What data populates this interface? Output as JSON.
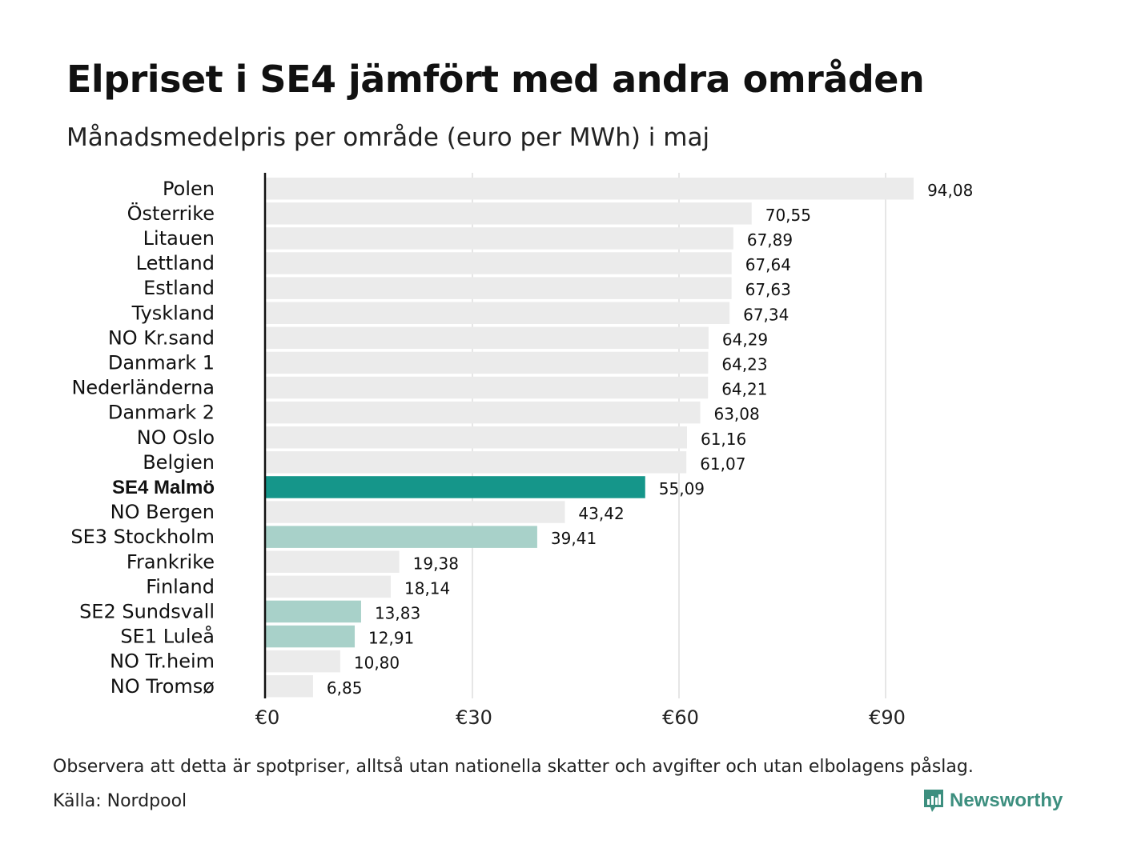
{
  "header": {
    "title": "Elpriset i SE4 jämfört med andra områden",
    "subtitle": "Månadsmedelpris per område (euro per MWh) i maj"
  },
  "footer": {
    "note": "Observera att detta är spotpriser, alltså utan nationella skatter och avgifter och utan elbolagens påslag.",
    "source": "Källa: Nordpool",
    "brand": "Newsworthy",
    "brand_icon": "newsworthy-logo-icon"
  },
  "colors": {
    "default_bar": "#ebebeb",
    "highlight_bar": "#15968a",
    "swedish_bar": "#a8d1c9",
    "grid": "#cccccc",
    "axis": "#111111",
    "brand": "#3d8f7f"
  },
  "chart_data": {
    "type": "bar",
    "orientation": "horizontal",
    "title": "Elpriset i SE4 jämfört med andra områden",
    "subtitle": "Månadsmedelpris per område (euro per MWh) i maj",
    "xlim": [
      0,
      105
    ],
    "x_ticks": [
      {
        "value": 0,
        "label": "€0"
      },
      {
        "value": 30,
        "label": "€30"
      },
      {
        "value": 60,
        "label": "€60"
      },
      {
        "value": 90,
        "label": "€90"
      }
    ],
    "grid": true,
    "categories": [
      "Polen",
      "Österrike",
      "Litauen",
      "Lettland",
      "Estland",
      "Tyskland",
      "NO Kr.sand",
      "Danmark  1",
      "Nederländerna",
      "Danmark  2",
      "NO Oslo",
      "Belgien",
      "SE4 Malmö",
      "NO Bergen",
      "SE3  Stockholm",
      "Frankrike",
      "Finland",
      "SE2  Sundsvall",
      "SE1  Luleå",
      "NO Tr.heim",
      "NO Tromsø"
    ],
    "values": [
      94.08,
      70.55,
      67.89,
      67.64,
      67.63,
      67.34,
      64.29,
      64.23,
      64.21,
      63.08,
      61.16,
      61.07,
      55.09,
      43.42,
      39.41,
      19.38,
      18.14,
      13.83,
      12.91,
      10.8,
      6.85
    ],
    "value_labels": [
      "94,08",
      "70,55",
      "67,89",
      "67,64",
      "67,63",
      "67,34",
      "64,29",
      "64,23",
      "64,21",
      "63,08",
      "61,16",
      "61,07",
      "55,09",
      "43,42",
      "39,41",
      "19,38",
      "18,14",
      "13,83",
      "12,91",
      "10,80",
      "6,85"
    ],
    "bar_style": [
      "default",
      "default",
      "default",
      "default",
      "default",
      "default",
      "default",
      "default",
      "default",
      "default",
      "default",
      "default",
      "highlight",
      "default",
      "swedish",
      "default",
      "default",
      "swedish",
      "swedish",
      "default",
      "default"
    ]
  }
}
